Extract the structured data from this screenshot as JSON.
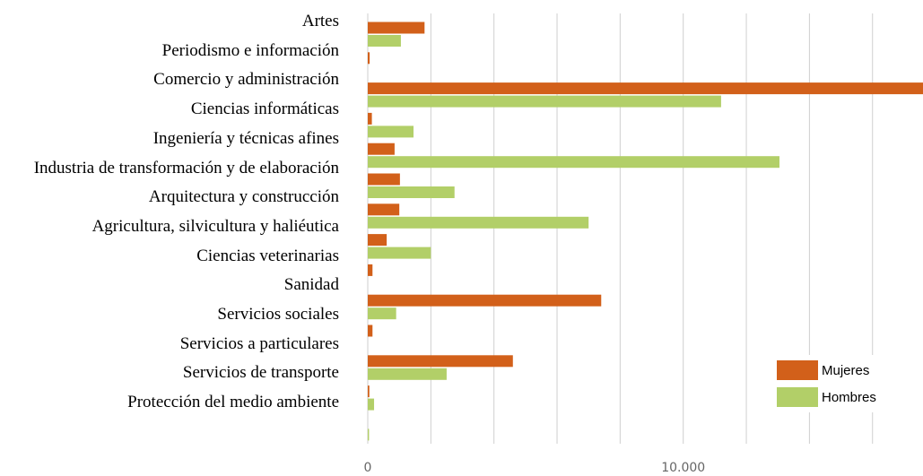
{
  "chart_data": {
    "type": "bar",
    "orientation": "horizontal",
    "categories": [
      "Artes",
      "Periodismo e información",
      "Comercio y administración",
      "Ciencias informáticas",
      "Ingeniería y técnicas afines",
      "Industria de transformación y de elaboración",
      "Arquitectura y construcción",
      "Agricultura, silvicultura y haliéutica",
      "Ciencias veterinarias",
      "Sanidad",
      "Servicios sociales",
      "Servicios a particulares",
      "Servicios de transporte",
      "Protección del medio ambiente"
    ],
    "series": [
      {
        "name": "Mujeres",
        "color": "#d2601a",
        "values": [
          1800,
          60,
          18000,
          130,
          850,
          1020,
          1000,
          600,
          150,
          7400,
          150,
          4600,
          50,
          0
        ]
      },
      {
        "name": "Hombres",
        "color": "#b2cf68",
        "values": [
          1050,
          0,
          11200,
          1450,
          13050,
          2750,
          7000,
          2000,
          0,
          900,
          0,
          2500,
          200,
          40
        ]
      }
    ],
    "xlim": [
      0,
      17600
    ],
    "xticks": [
      0,
      {
        "value": 10000,
        "label": "10.000"
      }
    ],
    "grid_lines": [
      2000,
      4000,
      6000,
      8000,
      12000,
      14000,
      16000
    ],
    "grid": true,
    "legend": "lower right"
  }
}
